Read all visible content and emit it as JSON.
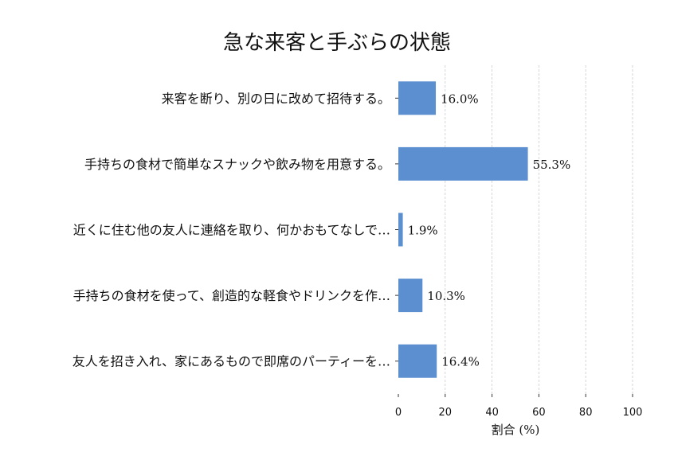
{
  "chart_data": {
    "type": "bar",
    "orientation": "horizontal",
    "title": "急な来客と手ぶらの状態",
    "xlabel": "割合 (%)",
    "ylabel": "",
    "xlim": [
      0,
      100
    ],
    "xticks": [
      "0",
      "20",
      "40",
      "60",
      "80",
      "100"
    ],
    "grid": "vertical dashed",
    "color": "#5b8fd0",
    "categories": [
      "来客を断り、別の日に改めて招待する。",
      "手持ちの食材で簡単なスナックや飲み物を用意する。",
      "近くに住む他の友人に連絡を取り、何かおもてなしで…",
      "手持ちの食材を使って、創造的な軽食やドリンクを作…",
      "友人を招き入れ、家にあるもので即席のパーティーを…"
    ],
    "values": [
      16.0,
      55.3,
      1.9,
      10.3,
      16.4
    ],
    "labels": [
      "16.0%",
      "55.3%",
      "1.9%",
      "10.3%",
      "16.4%"
    ]
  }
}
